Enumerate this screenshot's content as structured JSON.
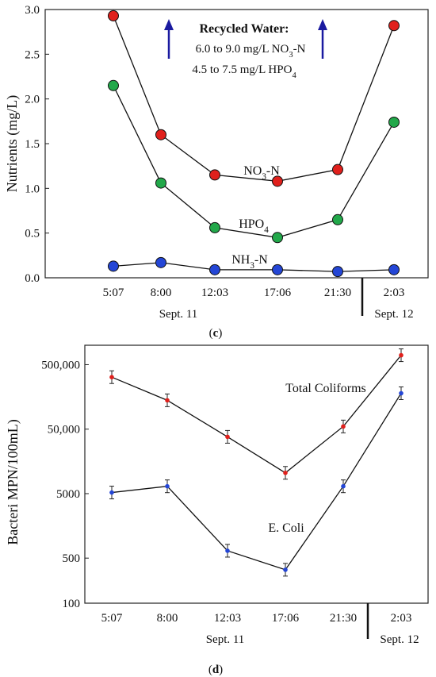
{
  "chart_data": [
    {
      "type": "line",
      "panel_label": "c",
      "ylabel": "Nutrients  (mg/L)",
      "categories": [
        "5:07",
        "8:00",
        "12:03",
        "17:06",
        "21:30",
        "2:03"
      ],
      "yticks": [
        "0.0",
        "0.5",
        "1.0",
        "1.5",
        "2.0",
        "2.5",
        "3.0"
      ],
      "ylim": [
        0,
        3.0
      ],
      "date_labels": [
        "Sept. 11",
        "Sept. 12"
      ],
      "annotation": {
        "title": "Recycled Water:",
        "line1": "6.0 to 9.0 mg/L NO",
        "line1_sub": "3",
        "line1_tail": "-N",
        "line2": "4.5 to 7.5 mg/L HPO",
        "line2_sub": "4",
        "arrow_color": "#1a1aa0"
      },
      "series": [
        {
          "name": "NO3-N",
          "label": "NO",
          "label_sub": "3",
          "label_tail": "-N",
          "color": "#e0201c",
          "values": [
            2.93,
            1.6,
            1.15,
            1.08,
            1.21,
            2.82
          ]
        },
        {
          "name": "HPO4",
          "label": "HPO",
          "label_sub": "4",
          "label_tail": "",
          "color": "#22a84a",
          "values": [
            2.15,
            1.06,
            0.56,
            0.45,
            0.65,
            1.74
          ]
        },
        {
          "name": "NH3-N",
          "label": "NH",
          "label_sub": "3",
          "label_tail": "-N",
          "color": "#2446d6",
          "values": [
            0.13,
            0.17,
            0.09,
            0.09,
            0.07,
            0.09
          ]
        }
      ],
      "grid": false
    },
    {
      "type": "line",
      "panel_label": "d",
      "ylabel": "Bacteri MPN/100mL)",
      "categories": [
        "5:07",
        "8:00",
        "12:03",
        "17:06",
        "21:30",
        "2:03"
      ],
      "yscale": "log",
      "yticks": [
        {
          "value": 100,
          "label": "100"
        },
        {
          "value": 500,
          "label": "500"
        },
        {
          "value": 5000,
          "label": "5000"
        },
        {
          "value": 50000,
          "label": "50,000"
        },
        {
          "value": 500000,
          "label": "500,000"
        }
      ],
      "ylim": [
        100,
        1000000
      ],
      "date_labels": [
        "Sept. 11",
        "Sept. 12"
      ],
      "series": [
        {
          "name": "Total Coliforms",
          "color": "#e0201c",
          "values": [
            320000,
            140000,
            38000,
            10500,
            55000,
            700000
          ]
        },
        {
          "name": "E. Coli",
          "color": "#2446d6",
          "values": [
            5200,
            6500,
            650,
            330,
            6500,
            180000
          ]
        }
      ],
      "grid": false
    }
  ]
}
